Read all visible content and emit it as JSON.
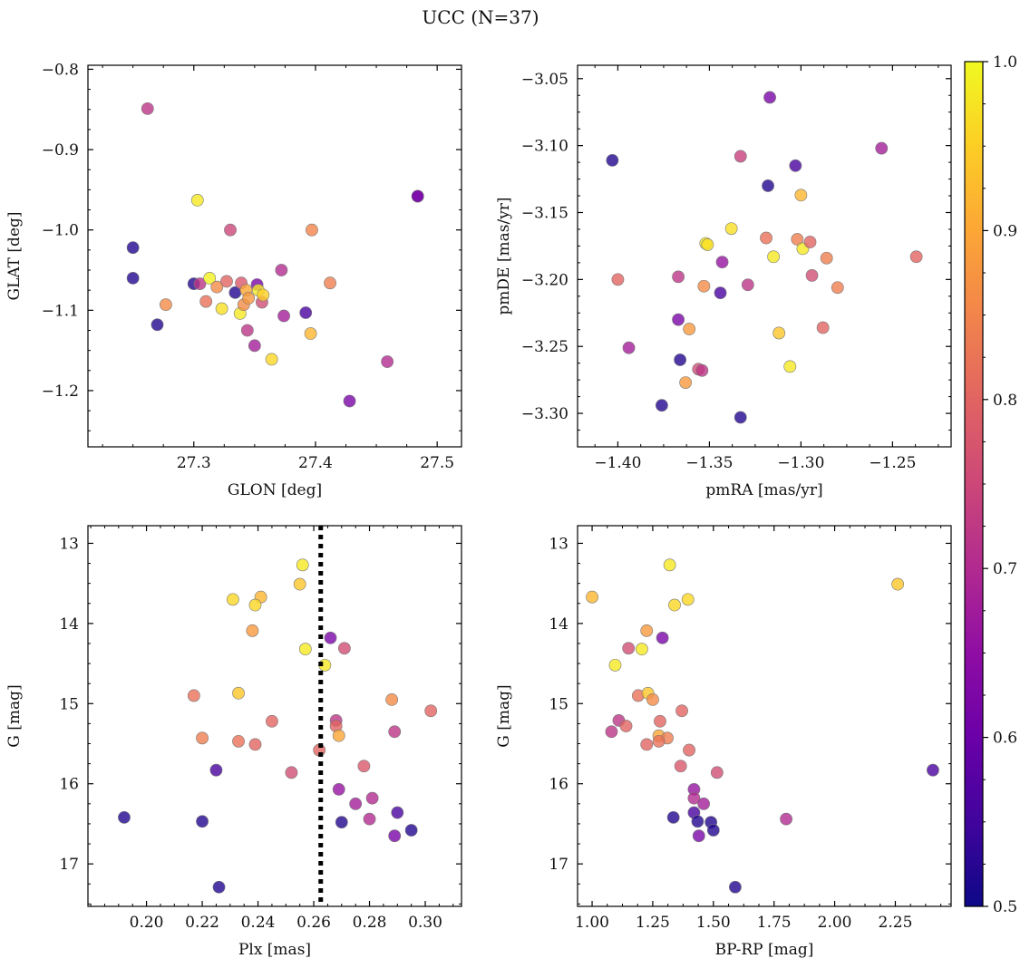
{
  "figure": {
    "title": "UCC (N=37)"
  },
  "colorbar": {
    "colormap": "plasma",
    "range": [
      0.5,
      1.0
    ],
    "ticks": [
      "0.5",
      "0.6",
      "0.7",
      "0.8",
      "0.9",
      "1.0"
    ]
  },
  "chart_data": [
    {
      "type": "scatter",
      "xlabel": "GLON [deg]",
      "ylabel": "GLAT [deg]",
      "xlim": [
        27.213,
        27.52
      ],
      "ylim": [
        -1.27,
        -0.795
      ],
      "xticks": [
        "27.3",
        "27.4",
        "27.5"
      ],
      "yticks": [
        "−0.8",
        "−0.9",
        "−1.0",
        "−1.1",
        "−1.2"
      ],
      "xtick_values": [
        27.3,
        27.4,
        27.5
      ],
      "ytick_values": [
        -0.8,
        -0.9,
        -1.0,
        -1.1,
        -1.2
      ],
      "points": [
        {
          "x": 27.262,
          "y": -0.849,
          "c": 0.72
        },
        {
          "x": 27.303,
          "y": -0.963,
          "c": 0.98
        },
        {
          "x": 27.33,
          "y": -1.0,
          "c": 0.75
        },
        {
          "x": 27.397,
          "y": -1.0,
          "c": 0.85
        },
        {
          "x": 27.484,
          "y": -0.958,
          "c": 0.62
        },
        {
          "x": 27.25,
          "y": -1.022,
          "c": 0.52
        },
        {
          "x": 27.25,
          "y": -1.06,
          "c": 0.52
        },
        {
          "x": 27.27,
          "y": -1.118,
          "c": 0.52
        },
        {
          "x": 27.277,
          "y": -1.093,
          "c": 0.86
        },
        {
          "x": 27.3,
          "y": -1.067,
          "c": 0.52
        },
        {
          "x": 27.305,
          "y": -1.067,
          "c": 0.72
        },
        {
          "x": 27.31,
          "y": -1.089,
          "c": 0.82
        },
        {
          "x": 27.313,
          "y": -1.06,
          "c": 0.99
        },
        {
          "x": 27.319,
          "y": -1.071,
          "c": 0.86
        },
        {
          "x": 27.323,
          "y": -1.098,
          "c": 0.97
        },
        {
          "x": 27.327,
          "y": -1.064,
          "c": 0.8
        },
        {
          "x": 27.334,
          "y": -1.078,
          "c": 0.52
        },
        {
          "x": 27.338,
          "y": -1.104,
          "c": 0.98
        },
        {
          "x": 27.339,
          "y": -1.066,
          "c": 0.78
        },
        {
          "x": 27.341,
          "y": -1.093,
          "c": 0.86
        },
        {
          "x": 27.343,
          "y": -1.075,
          "c": 0.9
        },
        {
          "x": 27.344,
          "y": -1.125,
          "c": 0.72
        },
        {
          "x": 27.345,
          "y": -1.085,
          "c": 0.88
        },
        {
          "x": 27.35,
          "y": -1.144,
          "c": 0.68
        },
        {
          "x": 27.352,
          "y": -1.068,
          "c": 0.62
        },
        {
          "x": 27.353,
          "y": -1.075,
          "c": 0.98
        },
        {
          "x": 27.356,
          "y": -1.09,
          "c": 0.76
        },
        {
          "x": 27.357,
          "y": -1.081,
          "c": 0.95
        },
        {
          "x": 27.364,
          "y": -1.161,
          "c": 0.96
        },
        {
          "x": 27.372,
          "y": -1.05,
          "c": 0.7
        },
        {
          "x": 27.374,
          "y": -1.107,
          "c": 0.68
        },
        {
          "x": 27.392,
          "y": -1.103,
          "c": 0.56
        },
        {
          "x": 27.396,
          "y": -1.129,
          "c": 0.92
        },
        {
          "x": 27.412,
          "y": -1.066,
          "c": 0.84
        },
        {
          "x": 27.428,
          "y": -1.213,
          "c": 0.62
        },
        {
          "x": 27.459,
          "y": -1.164,
          "c": 0.7
        },
        {
          "x": 27.484,
          "y": -0.958,
          "c": 0.62
        }
      ]
    },
    {
      "type": "scatter",
      "xlabel": "pmRA [mas/yr]",
      "ylabel": "pmDE [mas/yr]",
      "xlim": [
        -1.422,
        -1.218
      ],
      "ylim": [
        -3.325,
        -3.04
      ],
      "xticks": [
        "−1.40",
        "−1.35",
        "−1.30",
        "−1.25"
      ],
      "yticks": [
        "−3.05",
        "−3.10",
        "−3.15",
        "−3.20",
        "−3.25",
        "−3.30"
      ],
      "xtick_values": [
        -1.4,
        -1.35,
        -1.3,
        -1.25
      ],
      "ytick_values": [
        -3.05,
        -3.1,
        -3.15,
        -3.2,
        -3.25,
        -3.3
      ],
      "points": [
        {
          "x": -1.403,
          "y": -3.111,
          "c": 0.52
        },
        {
          "x": -1.4,
          "y": -3.2,
          "c": 0.8
        },
        {
          "x": -1.394,
          "y": -3.251,
          "c": 0.68
        },
        {
          "x": -1.376,
          "y": -3.294,
          "c": 0.52
        },
        {
          "x": -1.367,
          "y": -3.198,
          "c": 0.72
        },
        {
          "x": -1.367,
          "y": -3.23,
          "c": 0.62
        },
        {
          "x": -1.366,
          "y": -3.26,
          "c": 0.52
        },
        {
          "x": -1.363,
          "y": -3.277,
          "c": 0.88
        },
        {
          "x": -1.361,
          "y": -3.237,
          "c": 0.88
        },
        {
          "x": -1.356,
          "y": -3.267,
          "c": 0.76
        },
        {
          "x": -1.354,
          "y": -3.268,
          "c": 0.72
        },
        {
          "x": -1.353,
          "y": -3.205,
          "c": 0.86
        },
        {
          "x": -1.352,
          "y": -3.173,
          "c": 0.98
        },
        {
          "x": -1.351,
          "y": -3.174,
          "c": 0.97
        },
        {
          "x": -1.344,
          "y": -3.21,
          "c": 0.56
        },
        {
          "x": -1.343,
          "y": -3.187,
          "c": 0.66
        },
        {
          "x": -1.338,
          "y": -3.162,
          "c": 0.97
        },
        {
          "x": -1.333,
          "y": -3.108,
          "c": 0.74
        },
        {
          "x": -1.333,
          "y": -3.303,
          "c": 0.52
        },
        {
          "x": -1.329,
          "y": -3.204,
          "c": 0.72
        },
        {
          "x": -1.319,
          "y": -3.169,
          "c": 0.82
        },
        {
          "x": -1.318,
          "y": -3.13,
          "c": 0.52
        },
        {
          "x": -1.317,
          "y": -3.064,
          "c": 0.62
        },
        {
          "x": -1.315,
          "y": -3.183,
          "c": 0.98
        },
        {
          "x": -1.312,
          "y": -3.24,
          "c": 0.94
        },
        {
          "x": -1.306,
          "y": -3.265,
          "c": 0.98
        },
        {
          "x": -1.303,
          "y": -3.115,
          "c": 0.56
        },
        {
          "x": -1.302,
          "y": -3.17,
          "c": 0.84
        },
        {
          "x": -1.3,
          "y": -3.137,
          "c": 0.92
        },
        {
          "x": -1.299,
          "y": -3.177,
          "c": 0.98
        },
        {
          "x": -1.295,
          "y": -3.172,
          "c": 0.8
        },
        {
          "x": -1.294,
          "y": -3.197,
          "c": 0.76
        },
        {
          "x": -1.288,
          "y": -3.236,
          "c": 0.8
        },
        {
          "x": -1.286,
          "y": -3.184,
          "c": 0.84
        },
        {
          "x": -1.28,
          "y": -3.206,
          "c": 0.84
        },
        {
          "x": -1.256,
          "y": -3.102,
          "c": 0.68
        },
        {
          "x": -1.237,
          "y": -3.183,
          "c": 0.8
        }
      ]
    },
    {
      "type": "scatter",
      "xlabel": "Plx [mas]",
      "ylabel": "G [mag]",
      "xlim": [
        0.179,
        0.313
      ],
      "ylim": [
        17.53,
        12.78
      ],
      "y_inverted": true,
      "xticks": [
        "0.20",
        "0.22",
        "0.24",
        "0.26",
        "0.28",
        "0.30"
      ],
      "yticks": [
        "13",
        "14",
        "15",
        "16",
        "17"
      ],
      "xtick_values": [
        0.2,
        0.22,
        0.24,
        0.26,
        0.28,
        0.3
      ],
      "ytick_values": [
        13,
        14,
        15,
        16,
        17
      ],
      "vline": {
        "x": 0.2625,
        "style": "dotted",
        "color": "#000000"
      },
      "points": [
        {
          "x": 0.256,
          "y": 13.27,
          "c": 0.98
        },
        {
          "x": 0.255,
          "y": 13.51,
          "c": 0.94
        },
        {
          "x": 0.231,
          "y": 13.7,
          "c": 0.96
        },
        {
          "x": 0.241,
          "y": 13.67,
          "c": 0.92
        },
        {
          "x": 0.239,
          "y": 13.77,
          "c": 0.96
        },
        {
          "x": 0.238,
          "y": 14.09,
          "c": 0.88
        },
        {
          "x": 0.266,
          "y": 14.18,
          "c": 0.62
        },
        {
          "x": 0.257,
          "y": 14.32,
          "c": 0.98
        },
        {
          "x": 0.271,
          "y": 14.31,
          "c": 0.76
        },
        {
          "x": 0.264,
          "y": 14.52,
          "c": 0.98
        },
        {
          "x": 0.217,
          "y": 14.9,
          "c": 0.82
        },
        {
          "x": 0.233,
          "y": 14.87,
          "c": 0.94
        },
        {
          "x": 0.288,
          "y": 14.95,
          "c": 0.86
        },
        {
          "x": 0.302,
          "y": 15.09,
          "c": 0.8
        },
        {
          "x": 0.268,
          "y": 15.21,
          "c": 0.72
        },
        {
          "x": 0.245,
          "y": 15.22,
          "c": 0.8
        },
        {
          "x": 0.268,
          "y": 15.28,
          "c": 0.8
        },
        {
          "x": 0.289,
          "y": 15.35,
          "c": 0.72
        },
        {
          "x": 0.269,
          "y": 15.4,
          "c": 0.9
        },
        {
          "x": 0.22,
          "y": 15.43,
          "c": 0.84
        },
        {
          "x": 0.233,
          "y": 15.47,
          "c": 0.82
        },
        {
          "x": 0.239,
          "y": 15.51,
          "c": 0.8
        },
        {
          "x": 0.262,
          "y": 15.58,
          "c": 0.8
        },
        {
          "x": 0.278,
          "y": 15.78,
          "c": 0.78
        },
        {
          "x": 0.225,
          "y": 15.83,
          "c": 0.56
        },
        {
          "x": 0.252,
          "y": 15.86,
          "c": 0.76
        },
        {
          "x": 0.269,
          "y": 16.07,
          "c": 0.66
        },
        {
          "x": 0.281,
          "y": 16.18,
          "c": 0.7
        },
        {
          "x": 0.275,
          "y": 16.25,
          "c": 0.68
        },
        {
          "x": 0.29,
          "y": 16.36,
          "c": 0.56
        },
        {
          "x": 0.192,
          "y": 16.42,
          "c": 0.52
        },
        {
          "x": 0.28,
          "y": 16.44,
          "c": 0.7
        },
        {
          "x": 0.22,
          "y": 16.47,
          "c": 0.52
        },
        {
          "x": 0.27,
          "y": 16.48,
          "c": 0.52
        },
        {
          "x": 0.295,
          "y": 16.58,
          "c": 0.52
        },
        {
          "x": 0.289,
          "y": 16.65,
          "c": 0.62
        },
        {
          "x": 0.226,
          "y": 17.29,
          "c": 0.52
        }
      ]
    },
    {
      "type": "scatter",
      "xlabel": "BP-RP [mag]",
      "ylabel": "G [mag]",
      "xlim": [
        0.94,
        2.48
      ],
      "ylim": [
        17.53,
        12.78
      ],
      "y_inverted": true,
      "xticks": [
        "1.00",
        "1.25",
        "1.50",
        "1.75",
        "2.00",
        "2.25"
      ],
      "yticks": [
        "13",
        "14",
        "15",
        "16",
        "17"
      ],
      "xtick_values": [
        1.0,
        1.25,
        1.5,
        1.75,
        2.0,
        2.25
      ],
      "ytick_values": [
        13,
        14,
        15,
        16,
        17
      ],
      "points": [
        {
          "x": 1.32,
          "y": 13.27,
          "c": 0.98
        },
        {
          "x": 2.26,
          "y": 13.51,
          "c": 0.94
        },
        {
          "x": 1.0,
          "y": 13.67,
          "c": 0.92
        },
        {
          "x": 1.395,
          "y": 13.7,
          "c": 0.96
        },
        {
          "x": 1.34,
          "y": 13.77,
          "c": 0.96
        },
        {
          "x": 1.225,
          "y": 14.09,
          "c": 0.88
        },
        {
          "x": 1.29,
          "y": 14.18,
          "c": 0.62
        },
        {
          "x": 1.15,
          "y": 14.31,
          "c": 0.76
        },
        {
          "x": 1.205,
          "y": 14.32,
          "c": 0.98
        },
        {
          "x": 1.095,
          "y": 14.52,
          "c": 0.98
        },
        {
          "x": 1.19,
          "y": 14.9,
          "c": 0.82
        },
        {
          "x": 1.23,
          "y": 14.87,
          "c": 0.94
        },
        {
          "x": 1.25,
          "y": 14.95,
          "c": 0.86
        },
        {
          "x": 1.37,
          "y": 15.09,
          "c": 0.8
        },
        {
          "x": 1.11,
          "y": 15.21,
          "c": 0.72
        },
        {
          "x": 1.28,
          "y": 15.22,
          "c": 0.8
        },
        {
          "x": 1.14,
          "y": 15.28,
          "c": 0.8
        },
        {
          "x": 1.08,
          "y": 15.35,
          "c": 0.72
        },
        {
          "x": 1.275,
          "y": 15.4,
          "c": 0.9
        },
        {
          "x": 1.31,
          "y": 15.43,
          "c": 0.84
        },
        {
          "x": 1.275,
          "y": 15.47,
          "c": 0.82
        },
        {
          "x": 1.225,
          "y": 15.51,
          "c": 0.8
        },
        {
          "x": 1.4,
          "y": 15.58,
          "c": 0.8
        },
        {
          "x": 1.365,
          "y": 15.78,
          "c": 0.78
        },
        {
          "x": 2.405,
          "y": 15.83,
          "c": 0.56
        },
        {
          "x": 1.515,
          "y": 15.86,
          "c": 0.76
        },
        {
          "x": 1.42,
          "y": 16.07,
          "c": 0.66
        },
        {
          "x": 1.42,
          "y": 16.18,
          "c": 0.7
        },
        {
          "x": 1.46,
          "y": 16.25,
          "c": 0.68
        },
        {
          "x": 1.42,
          "y": 16.36,
          "c": 0.56
        },
        {
          "x": 1.335,
          "y": 16.42,
          "c": 0.52
        },
        {
          "x": 1.8,
          "y": 16.44,
          "c": 0.7
        },
        {
          "x": 1.435,
          "y": 16.47,
          "c": 0.52
        },
        {
          "x": 1.49,
          "y": 16.48,
          "c": 0.52
        },
        {
          "x": 1.5,
          "y": 16.58,
          "c": 0.52
        },
        {
          "x": 1.44,
          "y": 16.65,
          "c": 0.62
        },
        {
          "x": 1.59,
          "y": 17.29,
          "c": 0.52
        }
      ]
    }
  ]
}
